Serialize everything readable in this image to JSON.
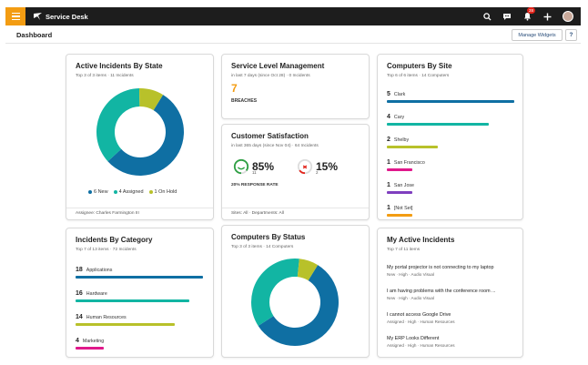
{
  "app": {
    "name": "Service Desk",
    "notification_count": "28",
    "brand_color": "#f39c12",
    "topbar_icons": [
      "search-icon",
      "chat-icon",
      "bell-icon",
      "plus-icon",
      "avatar"
    ]
  },
  "header": {
    "title": "Dashboard",
    "manage_widgets_label": "Manage Widgets",
    "help_label": "?"
  },
  "active_incidents": {
    "title": "Active Incidents By State",
    "subtitle": "Top 3 of 3 items  ·  11 Incidents",
    "legend": [
      {
        "label": "6 New",
        "color": "#0f6fa3"
      },
      {
        "label": "4 Assigned",
        "color": "#12b5a3"
      },
      {
        "label": "1 On Hold",
        "color": "#b8c12a"
      }
    ],
    "footer": "Assignee: Charles Farmington III"
  },
  "service_level": {
    "title": "Service Level Management",
    "subtitle": "in last 7 days (since Oct 28)  ·  0 Incidents",
    "breaches_value": "7",
    "breaches_label": "BREACHES"
  },
  "customer_satisfaction": {
    "title": "Customer Satisfaction",
    "subtitle": "in last 365 days (since Nov 04)  ·  64 Incidents",
    "positive_pct": "85%",
    "positive_count": "11",
    "positive_fraction": 0.85,
    "negative_pct": "15%",
    "negative_count": "2",
    "negative_fraction": 0.15,
    "response_rate_label": "20% RESPONSE RATE",
    "footer": "Sites: All  ·  Departments: All"
  },
  "computers_by_site": {
    "title": "Computers By Site",
    "subtitle": "Top 6 of 6 items  ·  14 Computers",
    "items": [
      {
        "count": "5",
        "label": "Clark",
        "color": "#0f6fa3",
        "fraction": 1.0
      },
      {
        "count": "4",
        "label": "Cary",
        "color": "#12b5a3",
        "fraction": 0.8
      },
      {
        "count": "2",
        "label": "Shelby",
        "color": "#b8c12a",
        "fraction": 0.4
      },
      {
        "count": "1",
        "label": "San Francisco",
        "color": "#e0198b",
        "fraction": 0.2
      },
      {
        "count": "1",
        "label": "San Jose",
        "color": "#7f3fbf",
        "fraction": 0.2
      },
      {
        "count": "1",
        "label": "[Not Set]",
        "color": "#f39c12",
        "fraction": 0.2
      }
    ]
  },
  "incidents_by_category": {
    "title": "Incidents By Category",
    "subtitle": "Top 7 of 13 items  ·  72 Incidents",
    "items": [
      {
        "count": "18",
        "label": "Applications",
        "color": "#0f6fa3",
        "fraction": 1.0
      },
      {
        "count": "16",
        "label": "Hardware",
        "color": "#12b5a3",
        "fraction": 0.89
      },
      {
        "count": "14",
        "label": "Human Resources",
        "color": "#b8c12a",
        "fraction": 0.78
      },
      {
        "count": "4",
        "label": "Marketing",
        "color": "#e0198b",
        "fraction": 0.22
      }
    ]
  },
  "computers_by_status": {
    "title": "Computers By Status",
    "subtitle": "Top 3 of 3 items  ·  14 Computers"
  },
  "chart_data": [
    {
      "type": "pie",
      "name": "Active Incidents By State",
      "labels": [
        "New",
        "Assigned",
        "On Hold"
      ],
      "values": [
        6,
        4,
        1
      ],
      "colors": [
        "#0f6fa3",
        "#12b5a3",
        "#b8c12a"
      ]
    },
    {
      "type": "pie",
      "name": "Computers By Status",
      "labels": [
        "",
        "",
        ""
      ],
      "values": [
        8,
        5,
        1
      ],
      "colors": [
        "#0f6fa3",
        "#12b5a3",
        "#b8c12a"
      ]
    }
  ],
  "my_active_incidents": {
    "title": "My Active Incidents",
    "subtitle": "Top 7 of 11 items",
    "items": [
      {
        "title": "My portal projector is not connecting to my laptop",
        "meta": "New  ·  High  ·  Audio Visual"
      },
      {
        "title": "I am having problems with the conference room ...",
        "meta": "New  ·  High  ·  Audio Visual"
      },
      {
        "title": "I cannot access Google Drive",
        "meta": "Assigned  ·  High  ·  Human Resources"
      },
      {
        "title": "My ERP Looks Different",
        "meta": "Assigned  ·  High  ·  Human Resources"
      }
    ]
  }
}
